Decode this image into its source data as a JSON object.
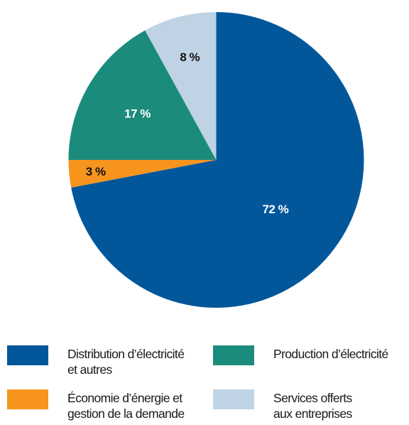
{
  "chart_data": {
    "type": "pie",
    "start_angle_deg": 0,
    "direction": "clockwise",
    "slices": [
      {
        "label": "Distribution d’électricité et autres",
        "value": 72,
        "display": "72 %",
        "color": "#02579b",
        "label_color": "#ffffff"
      },
      {
        "label": "Économie d’énergie et gestion de la demande",
        "value": 3,
        "display": "3 %",
        "color": "#f7941d",
        "label_color": "#111111"
      },
      {
        "label": "Production d’électricité",
        "value": 17,
        "display": "17 %",
        "color": "#1b8c7c",
        "label_color": "#ffffff"
      },
      {
        "label": "Services offerts aux entreprises",
        "value": 8,
        "display": "8 %",
        "color": "#bfd3e4",
        "label_color": "#111111"
      }
    ]
  },
  "legend": {
    "items": [
      {
        "line1": "Distribution d’électricité",
        "line2": "et autres",
        "color": "#02579b"
      },
      {
        "line1": "Production d’électricité",
        "line2": "",
        "color": "#1b8c7c"
      },
      {
        "line1": "Économie d’énergie et",
        "line2": "gestion de la demande",
        "color": "#f7941d"
      },
      {
        "line1": "Services offerts",
        "line2": "aux entreprises",
        "color": "#bfd3e4"
      }
    ]
  }
}
